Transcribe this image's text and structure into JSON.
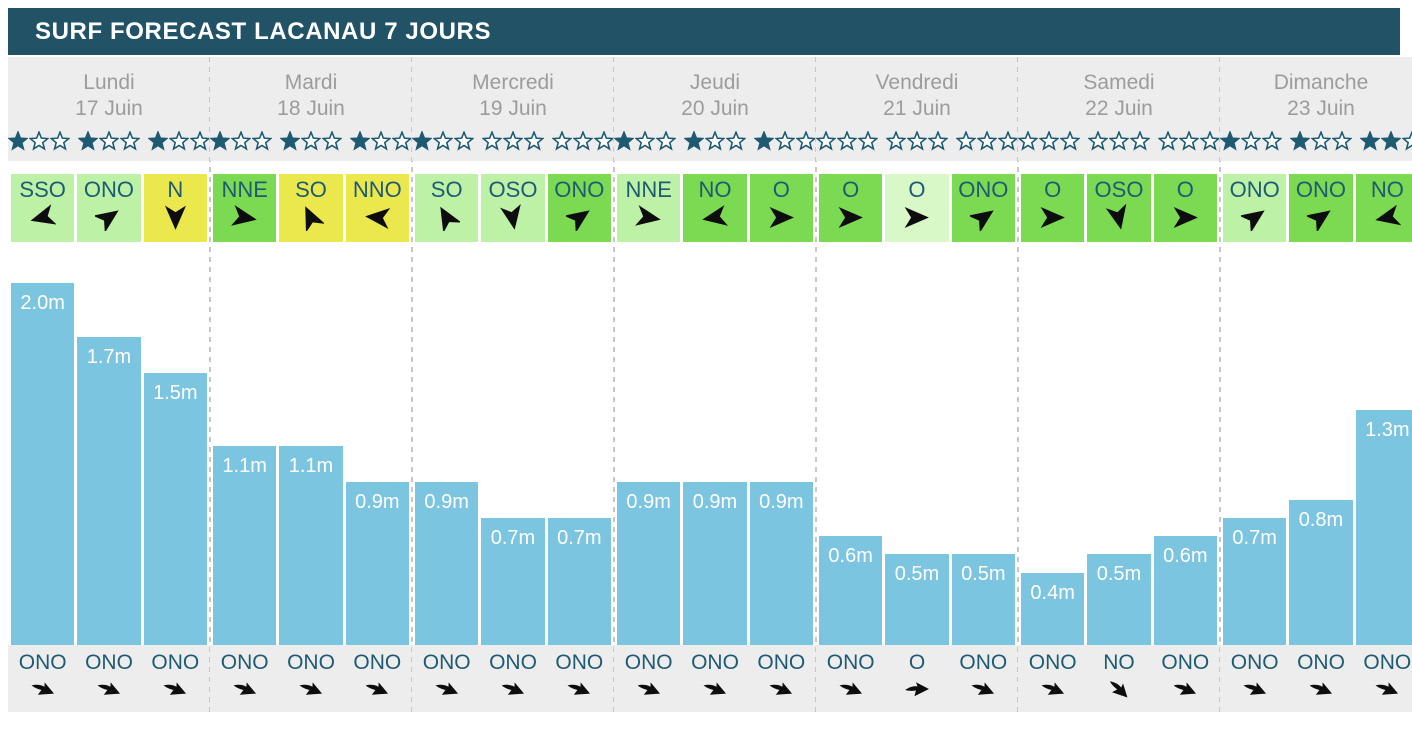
{
  "title": "SURF FORECAST LACANAU 7 JOURS",
  "colors": {
    "header_bg": "#215266",
    "panel_gray": "#ededed",
    "text_teal": "#1e5b73",
    "day_text_gray": "#9c9c9c",
    "bar_blue": "#7cc5e1",
    "arrow_black": "#0d0d0d",
    "wind_yellow": "#ebe84e",
    "wind_pale_green": "#d8f8c8",
    "wind_light_green": "#bdf1a6",
    "wind_mid_green": "#7cd952"
  },
  "stars_max_per_group": 3,
  "days": [
    {
      "name": "Lundi",
      "date": "17 Juin",
      "ratings": [
        1,
        1,
        1
      ],
      "wind": [
        {
          "dir": "SSO",
          "tone": "wind_light_green",
          "angle": 255
        },
        {
          "dir": "ONO",
          "tone": "wind_light_green",
          "angle": 55
        },
        {
          "dir": "N",
          "tone": "wind_yellow",
          "angle": 180
        }
      ],
      "waves": [
        {
          "height_m": 2.0,
          "label": "2.0m"
        },
        {
          "height_m": 1.7,
          "label": "1.7m"
        },
        {
          "height_m": 1.5,
          "label": "1.5m"
        }
      ],
      "swell": [
        {
          "dir": "ONO",
          "angle": 112.5
        },
        {
          "dir": "ONO",
          "angle": 112.5
        },
        {
          "dir": "ONO",
          "angle": 112.5
        }
      ]
    },
    {
      "name": "Mardi",
      "date": "18 Juin",
      "ratings": [
        1,
        1,
        1
      ],
      "wind": [
        {
          "dir": "NNE",
          "tone": "wind_mid_green",
          "angle": 100
        },
        {
          "dir": "SO",
          "tone": "wind_yellow",
          "angle": 335
        },
        {
          "dir": "NNO",
          "tone": "wind_yellow",
          "angle": 275
        }
      ],
      "waves": [
        {
          "height_m": 1.1,
          "label": "1.1m"
        },
        {
          "height_m": 1.1,
          "label": "1.1m"
        },
        {
          "height_m": 0.9,
          "label": "0.9m"
        }
      ],
      "swell": [
        {
          "dir": "ONO",
          "angle": 112.5
        },
        {
          "dir": "ONO",
          "angle": 112.5
        },
        {
          "dir": "ONO",
          "angle": 112.5
        }
      ]
    },
    {
      "name": "Mercredi",
      "date": "19 Juin",
      "ratings": [
        1,
        0,
        0
      ],
      "wind": [
        {
          "dir": "SO",
          "tone": "wind_light_green",
          "angle": 330
        },
        {
          "dir": "OSO",
          "tone": "wind_light_green",
          "angle": 170
        },
        {
          "dir": "ONO",
          "tone": "wind_mid_green",
          "angle": 55
        }
      ],
      "waves": [
        {
          "height_m": 0.9,
          "label": "0.9m"
        },
        {
          "height_m": 0.7,
          "label": "0.7m"
        },
        {
          "height_m": 0.7,
          "label": "0.7m"
        }
      ],
      "swell": [
        {
          "dir": "ONO",
          "angle": 112.5
        },
        {
          "dir": "ONO",
          "angle": 112.5
        },
        {
          "dir": "ONO",
          "angle": 112.5
        }
      ]
    },
    {
      "name": "Jeudi",
      "date": "20 Juin",
      "ratings": [
        1,
        1,
        1
      ],
      "wind": [
        {
          "dir": "NNE",
          "tone": "wind_light_green",
          "angle": 100
        },
        {
          "dir": "NO",
          "tone": "wind_mid_green",
          "angle": 260
        },
        {
          "dir": "O",
          "tone": "wind_mid_green",
          "angle": 90
        }
      ],
      "waves": [
        {
          "height_m": 0.9,
          "label": "0.9m"
        },
        {
          "height_m": 0.9,
          "label": "0.9m"
        },
        {
          "height_m": 0.9,
          "label": "0.9m"
        }
      ],
      "swell": [
        {
          "dir": "ONO",
          "angle": 112.5
        },
        {
          "dir": "ONO",
          "angle": 112.5
        },
        {
          "dir": "ONO",
          "angle": 112.5
        }
      ]
    },
    {
      "name": "Vendredi",
      "date": "21 Juin",
      "ratings": [
        0,
        0,
        0
      ],
      "wind": [
        {
          "dir": "O",
          "tone": "wind_mid_green",
          "angle": 90
        },
        {
          "dir": "O",
          "tone": "wind_pale_green",
          "angle": 90
        },
        {
          "dir": "ONO",
          "tone": "wind_mid_green",
          "angle": 55
        }
      ],
      "waves": [
        {
          "height_m": 0.6,
          "label": "0.6m"
        },
        {
          "height_m": 0.5,
          "label": "0.5m"
        },
        {
          "height_m": 0.5,
          "label": "0.5m"
        }
      ],
      "swell": [
        {
          "dir": "ONO",
          "angle": 112.5
        },
        {
          "dir": "O",
          "angle": 90
        },
        {
          "dir": "ONO",
          "angle": 112.5
        }
      ]
    },
    {
      "name": "Samedi",
      "date": "22 Juin",
      "ratings": [
        0,
        0,
        0
      ],
      "wind": [
        {
          "dir": "O",
          "tone": "wind_mid_green",
          "angle": 90
        },
        {
          "dir": "OSO",
          "tone": "wind_mid_green",
          "angle": 168
        },
        {
          "dir": "O",
          "tone": "wind_mid_green",
          "angle": 90
        }
      ],
      "waves": [
        {
          "height_m": 0.4,
          "label": "0.4m"
        },
        {
          "height_m": 0.5,
          "label": "0.5m"
        },
        {
          "height_m": 0.6,
          "label": "0.6m"
        }
      ],
      "swell": [
        {
          "dir": "ONO",
          "angle": 112.5
        },
        {
          "dir": "NO",
          "angle": 135
        },
        {
          "dir": "ONO",
          "angle": 112.5
        }
      ]
    },
    {
      "name": "Dimanche",
      "date": "23 Juin",
      "ratings": [
        1,
        1,
        2
      ],
      "wind": [
        {
          "dir": "ONO",
          "tone": "wind_light_green",
          "angle": 55
        },
        {
          "dir": "ONO",
          "tone": "wind_mid_green",
          "angle": 55
        },
        {
          "dir": "NO",
          "tone": "wind_mid_green",
          "angle": 258
        }
      ],
      "waves": [
        {
          "height_m": 0.7,
          "label": "0.7m"
        },
        {
          "height_m": 0.8,
          "label": "0.8m"
        },
        {
          "height_m": 1.3,
          "label": "1.3m"
        }
      ],
      "swell": [
        {
          "dir": "ONO",
          "angle": 112.5
        },
        {
          "dir": "ONO",
          "angle": 112.5
        },
        {
          "dir": "ONO",
          "angle": 112.5
        }
      ]
    }
  ],
  "chart_data": {
    "type": "bar",
    "title": "SURF FORECAST LACANAU 7 JOURS",
    "categories": [
      "Lundi 17 Juin",
      "Mardi 18 Juin",
      "Mercredi 19 Juin",
      "Jeudi 20 Juin",
      "Vendredi 21 Juin",
      "Samedi 22 Juin",
      "Dimanche 23 Juin"
    ],
    "values_per_day_m": [
      [
        2.0,
        1.7,
        1.5
      ],
      [
        1.1,
        1.1,
        0.9
      ],
      [
        0.9,
        0.7,
        0.7
      ],
      [
        0.9,
        0.9,
        0.9
      ],
      [
        0.6,
        0.5,
        0.5
      ],
      [
        0.4,
        0.5,
        0.6
      ],
      [
        0.7,
        0.8,
        1.3
      ]
    ],
    "unit": "m",
    "ylim": [
      0,
      2.2
    ],
    "bar_color": "#7cc5e1",
    "data_labels": "inside-top",
    "grid": false,
    "legend": "none"
  }
}
